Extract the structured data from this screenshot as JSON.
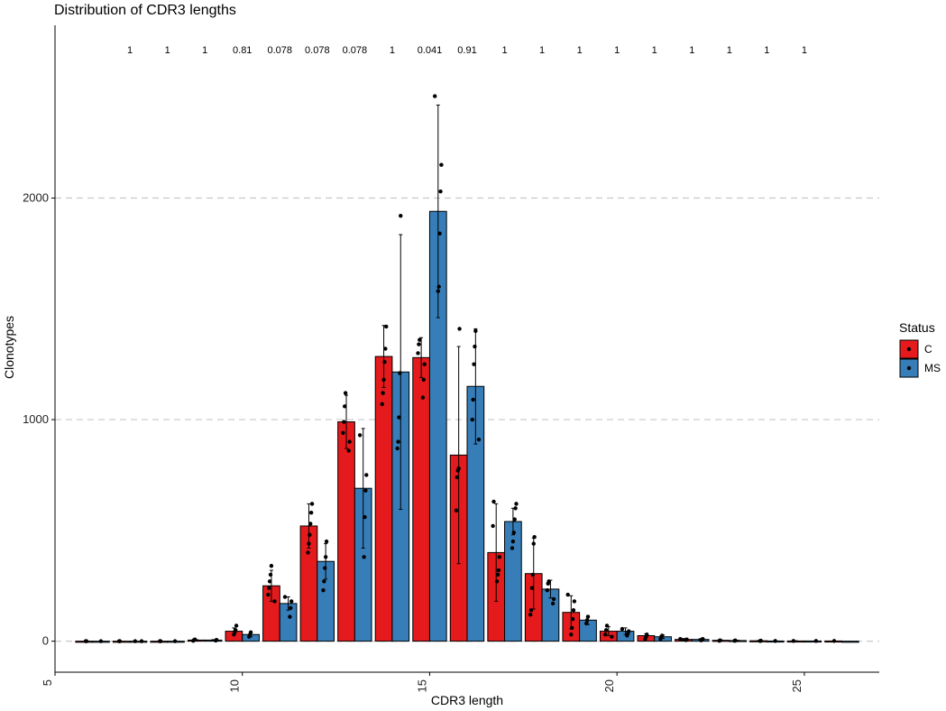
{
  "chart_data": {
    "type": "bar",
    "title": "Distribution of CDR3 lengths",
    "xlabel": "CDR3 length",
    "ylabel": "Clonotypes",
    "xlim": [
      5,
      27
    ],
    "ylim": [
      -140,
      2780
    ],
    "x_ticks": [
      5,
      10,
      15,
      20,
      25
    ],
    "y_ticks": [
      0,
      1000,
      2000
    ],
    "grid": "horizontal dashed",
    "legend": {
      "title": "Status",
      "placement": "right"
    },
    "colors": {
      "C": "#E41A1C",
      "MS": "#377EB8"
    },
    "series": [
      {
        "name": "C",
        "x": [
          6,
          7,
          8,
          9,
          10,
          11,
          12,
          13,
          14,
          15,
          16,
          17,
          18,
          19,
          20,
          21,
          22,
          23,
          24,
          25,
          26
        ],
        "values": [
          0,
          0,
          0,
          5,
          45,
          250,
          520,
          990,
          1285,
          1280,
          840,
          400,
          305,
          130,
          45,
          25,
          8,
          4,
          2,
          1,
          1
        ],
        "error": [
          0,
          0,
          0,
          2,
          15,
          70,
          100,
          120,
          140,
          90,
          490,
          220,
          160,
          75,
          20,
          8,
          4,
          2,
          1,
          1,
          0
        ],
        "points": [
          [
            0,
            0
          ],
          [
            0,
            0
          ],
          [
            0,
            0
          ],
          [
            2,
            5,
            8
          ],
          [
            30,
            40,
            50,
            70
          ],
          [
            180,
            210,
            240,
            270,
            300,
            340
          ],
          [
            400,
            440,
            480,
            530,
            580,
            620
          ],
          [
            860,
            900,
            940,
            990,
            1060,
            1120
          ],
          [
            1070,
            1120,
            1180,
            1260,
            1320,
            1420
          ],
          [
            1100,
            1180,
            1250,
            1300,
            1340,
            1360
          ],
          [
            590,
            740,
            770,
            780,
            1410
          ],
          [
            270,
            300,
            320,
            380,
            520,
            630
          ],
          [
            120,
            140,
            240,
            300,
            440,
            470
          ],
          [
            30,
            60,
            100,
            140,
            180,
            210
          ],
          [
            20,
            30,
            50,
            70
          ],
          [
            10,
            20,
            30
          ],
          [
            5,
            8,
            10
          ],
          [
            2,
            4
          ],
          [
            1,
            2
          ],
          [
            1
          ],
          [
            1
          ]
        ]
      },
      {
        "name": "MS",
        "x": [
          6,
          7,
          8,
          9,
          10,
          11,
          12,
          13,
          14,
          15,
          16,
          17,
          18,
          19,
          20,
          21,
          22,
          23,
          24,
          25,
          26
        ],
        "values": [
          0,
          0,
          0,
          5,
          30,
          170,
          360,
          690,
          1215,
          1940,
          1150,
          540,
          235,
          95,
          45,
          20,
          8,
          3,
          1,
          1,
          0
        ],
        "error": [
          0,
          0,
          0,
          2,
          10,
          30,
          80,
          270,
          620,
          480,
          260,
          60,
          40,
          20,
          15,
          8,
          3,
          1,
          1,
          0,
          0
        ],
        "points": [
          [
            0
          ],
          [
            0,
            0
          ],
          [
            0
          ],
          [
            3,
            6
          ],
          [
            20,
            30,
            40
          ],
          [
            110,
            150,
            180,
            200
          ],
          [
            230,
            270,
            330,
            380,
            450
          ],
          [
            380,
            560,
            680,
            750,
            930
          ],
          [
            870,
            900,
            1010,
            1210,
            1920
          ],
          [
            1580,
            1600,
            1840,
            2030,
            2150,
            2460
          ],
          [
            910,
            1000,
            1090,
            1250,
            1330,
            1400
          ],
          [
            420,
            450,
            490,
            550,
            600,
            620
          ],
          [
            170,
            190,
            230,
            260,
            270
          ],
          [
            80,
            95,
            110
          ],
          [
            25,
            35,
            45,
            55
          ],
          [
            10,
            20,
            25
          ],
          [
            4,
            8,
            10
          ],
          [
            2,
            3
          ],
          [
            1
          ],
          [
            1
          ],
          []
        ]
      }
    ],
    "annotations": {
      "positions": [
        7,
        8,
        9,
        10,
        11,
        12,
        13,
        14,
        15,
        16,
        17,
        18,
        19,
        20,
        21,
        22,
        23,
        24,
        25
      ],
      "labels": [
        "1",
        "1",
        "1",
        "0.81",
        "0.078",
        "0.078",
        "0.078",
        "1",
        "0.041",
        "0.91",
        "1",
        "1",
        "1",
        "1",
        "1",
        "1",
        "1",
        "1",
        "1"
      ]
    }
  }
}
